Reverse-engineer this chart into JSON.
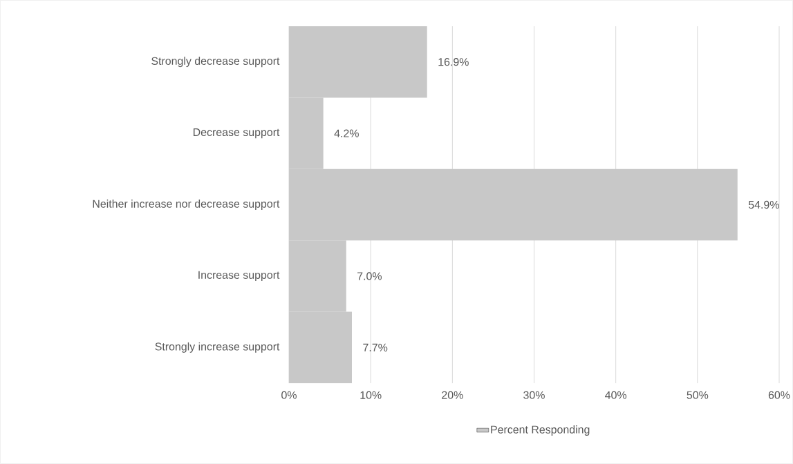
{
  "chart_data": {
    "type": "bar",
    "orientation": "horizontal",
    "categories": [
      "Strongly decrease support",
      "Decrease support",
      "Neither increase nor decrease support",
      "Increase support",
      "Strongly increase support"
    ],
    "series": [
      {
        "name": "Percent Responding",
        "color": "#c8c8c8",
        "values": [
          16.9,
          4.2,
          54.9,
          7.0,
          7.7
        ],
        "value_labels": [
          "16.9%",
          "4.2%",
          "54.9%",
          "7.0%",
          "7.7%"
        ]
      }
    ],
    "xlim": [
      0,
      60
    ],
    "xticks": [
      {
        "value": 0,
        "label": "0%"
      },
      {
        "value": 10,
        "label": "10%"
      },
      {
        "value": 20,
        "label": "20%"
      },
      {
        "value": 30,
        "label": "30%"
      },
      {
        "value": 40,
        "label": "40%"
      },
      {
        "value": 50,
        "label": "50%"
      },
      {
        "value": 60,
        "label": "60%"
      }
    ],
    "grid": "x",
    "legend": "bottom"
  }
}
